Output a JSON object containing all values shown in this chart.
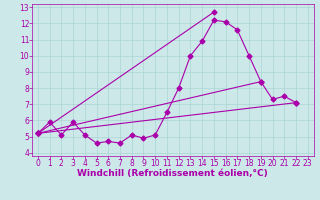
{
  "xlabel": "Windchill (Refroidissement éolien,°C)",
  "ylabel": "",
  "bg_color": "#cde8e8",
  "line_color": "#aa00aa",
  "xlim": [
    -0.5,
    23.5
  ],
  "ylim": [
    3.8,
    13.2
  ],
  "xticks": [
    0,
    1,
    2,
    3,
    4,
    5,
    6,
    7,
    8,
    9,
    10,
    11,
    12,
    13,
    14,
    15,
    16,
    17,
    18,
    19,
    20,
    21,
    22,
    23
  ],
  "yticks": [
    4,
    5,
    6,
    7,
    8,
    9,
    10,
    11,
    12,
    13
  ],
  "series1_x": [
    0,
    1,
    2,
    3,
    4,
    5,
    6,
    7,
    8,
    9,
    10,
    11,
    12,
    13,
    14,
    15,
    16,
    17,
    18,
    19,
    20,
    21,
    22
  ],
  "series1_y": [
    5.2,
    5.9,
    5.1,
    5.9,
    5.1,
    4.6,
    4.7,
    4.6,
    5.1,
    4.9,
    5.1,
    6.5,
    8.0,
    10.0,
    10.9,
    12.2,
    12.1,
    11.6,
    10.0,
    8.4,
    7.3,
    7.5,
    7.1
  ],
  "line2_x": [
    0,
    15
  ],
  "line2_y": [
    5.2,
    12.7
  ],
  "line3_x": [
    0,
    19
  ],
  "line3_y": [
    5.2,
    8.4
  ],
  "line4_x": [
    0,
    22
  ],
  "line4_y": [
    5.2,
    7.1
  ],
  "grid_color": "#aad4d4",
  "markersize": 2.5,
  "linewidth": 0.8,
  "fontsize_label": 6.5,
  "fontsize_tick": 5.5
}
